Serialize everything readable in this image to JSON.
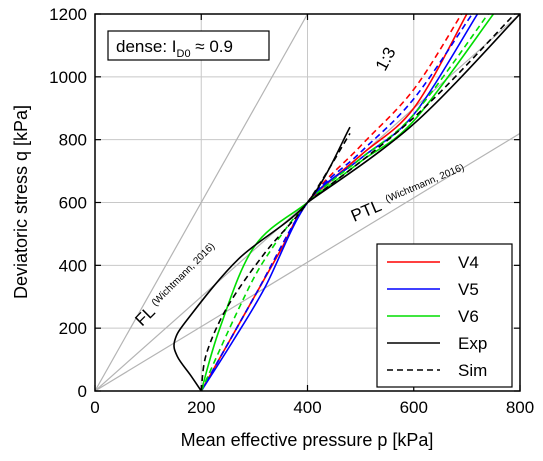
{
  "chart_data": {
    "type": "line",
    "xlabel": "Mean effective pressure p [kPa]",
    "ylabel": "Deviatoric stress q [kPa]",
    "xlim": [
      0,
      800
    ],
    "ylim": [
      0,
      1200
    ],
    "x_ticks": [
      "0",
      "200",
      "400",
      "600",
      "800"
    ],
    "y_ticks": [
      "0",
      "200",
      "400",
      "600",
      "800",
      "1000",
      "1200"
    ],
    "grid": true,
    "legend_position": "bottom-right",
    "annotations": {
      "box_prefix": "dense: I",
      "box_sub": "D0",
      "box_suffix": " ≈ 0.9",
      "slope_label": "1:3",
      "fl_label": "FL",
      "fl_ref": "(Wichtmann, 2016)",
      "ptl_label": "PTL",
      "ptl_ref": "(Wichtmann, 2016)"
    },
    "reference_lines": [
      {
        "name": "FL",
        "points": [
          [
            0,
            0
          ],
          [
            400,
            600
          ]
        ]
      },
      {
        "name": "1:3",
        "points": [
          [
            0,
            0
          ],
          [
            400,
            1200
          ]
        ]
      },
      {
        "name": "PTL",
        "points": [
          [
            0,
            0
          ],
          [
            800,
            820
          ]
        ]
      }
    ],
    "legend": [
      {
        "label": "V4",
        "color": "#ff0000",
        "dash": false
      },
      {
        "label": "V5",
        "color": "#0000ff",
        "dash": false
      },
      {
        "label": "V6",
        "color": "#00dd00",
        "dash": false
      },
      {
        "label": "Exp",
        "color": "#000000",
        "dash": false
      },
      {
        "label": "Sim",
        "color": "#000000",
        "dash": true
      }
    ],
    "series": [
      {
        "legend": "V4",
        "kind": "Exp",
        "color": "#ff0000",
        "points": [
          [
            200,
            0
          ],
          [
            250,
            150
          ],
          [
            300,
            300
          ],
          [
            350,
            450
          ],
          [
            400,
            600
          ],
          [
            500,
            750
          ],
          [
            600,
            900
          ],
          [
            700,
            1200
          ]
        ]
      },
      {
        "legend": "V4",
        "kind": "Sim",
        "color": "#ff0000",
        "points": [
          [
            200,
            0
          ],
          [
            300,
            300
          ],
          [
            400,
            600
          ],
          [
            500,
            780
          ],
          [
            600,
            960
          ],
          [
            690,
            1200
          ]
        ]
      },
      {
        "legend": "V5",
        "kind": "Exp",
        "color": "#0000ff",
        "points": [
          [
            200,
            0
          ],
          [
            260,
            160
          ],
          [
            320,
            330
          ],
          [
            400,
            600
          ],
          [
            500,
            740
          ],
          [
            600,
            880
          ],
          [
            720,
            1200
          ]
        ]
      },
      {
        "legend": "V5",
        "kind": "Sim",
        "color": "#0000ff",
        "points": [
          [
            200,
            0
          ],
          [
            300,
            300
          ],
          [
            400,
            600
          ],
          [
            500,
            760
          ],
          [
            600,
            930
          ],
          [
            710,
            1200
          ]
        ]
      },
      {
        "legend": "V6",
        "kind": "Exp",
        "color": "#00dd00",
        "points": [
          [
            200,
            0
          ],
          [
            235,
            200
          ],
          [
            300,
            460
          ],
          [
            400,
            600
          ],
          [
            500,
            730
          ],
          [
            600,
            860
          ],
          [
            750,
            1200
          ]
        ]
      },
      {
        "legend": "V6",
        "kind": "Sim",
        "color": "#00dd00",
        "points": [
          [
            200,
            0
          ],
          [
            270,
            260
          ],
          [
            320,
            420
          ],
          [
            400,
            600
          ],
          [
            500,
            740
          ],
          [
            600,
            880
          ],
          [
            740,
            1200
          ]
        ]
      },
      {
        "legend": "Exp",
        "kind": "Exp",
        "color": "#000000",
        "points": [
          [
            200,
            0
          ],
          [
            180,
            50
          ],
          [
            155,
            110
          ],
          [
            150,
            160
          ],
          [
            175,
            230
          ],
          [
            270,
            420
          ],
          [
            400,
            600
          ],
          [
            480,
            840
          ]
        ]
      },
      {
        "legend": "Exp",
        "kind": "Exp",
        "color": "#000000",
        "points": [
          [
            400,
            600
          ],
          [
            600,
            850
          ],
          [
            800,
            1200
          ]
        ]
      },
      {
        "legend": "Sim",
        "kind": "Sim",
        "color": "#000000",
        "points": [
          [
            200,
            0
          ],
          [
            210,
            120
          ],
          [
            250,
            270
          ],
          [
            320,
            440
          ],
          [
            400,
            600
          ],
          [
            480,
            820
          ]
        ]
      },
      {
        "legend": "Sim",
        "kind": "Sim",
        "color": "#000000",
        "points": [
          [
            400,
            600
          ],
          [
            600,
            870
          ],
          [
            790,
            1200
          ]
        ]
      }
    ]
  }
}
